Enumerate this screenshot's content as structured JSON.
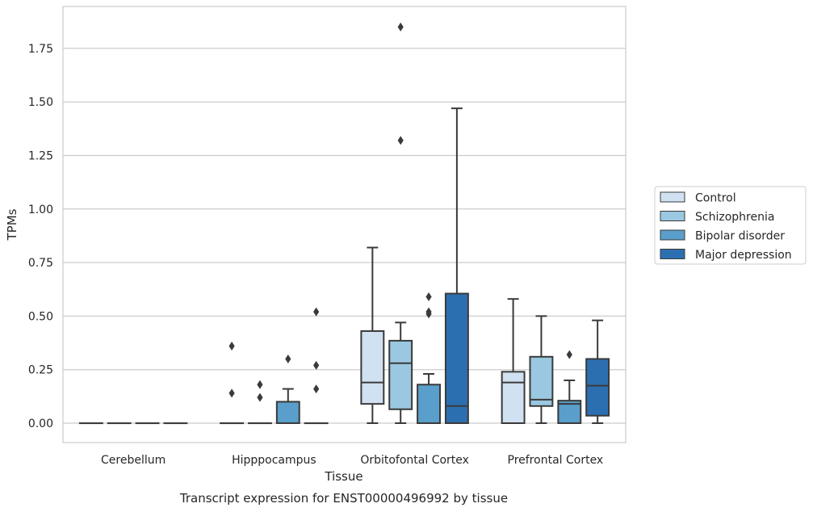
{
  "chart_data": {
    "type": "box",
    "title": "",
    "caption": "Transcript expression for ENST00000496992 by tissue",
    "xlabel": "Tissue",
    "ylabel": "TPMs",
    "ylim": [
      -0.09,
      1.95
    ],
    "yticks": [
      "0.00",
      "0.25",
      "0.50",
      "0.75",
      "1.00",
      "1.25",
      "1.50",
      "1.75"
    ],
    "grid": "horizontal",
    "legend_position": "right",
    "categories": [
      "Cerebellum",
      "Hipppocampus",
      "Orbitofontal Cortex",
      "Prefrontal Cortex"
    ],
    "series": [
      {
        "name": "Control",
        "color": "#d0e1f2",
        "boxes": [
          {
            "q1": 0,
            "median": 0,
            "q3": 0,
            "whisker_low": 0,
            "whisker_high": 0,
            "outliers": []
          },
          {
            "q1": 0,
            "median": 0,
            "q3": 0,
            "whisker_low": 0,
            "whisker_high": 0,
            "outliers": [
              0.36,
              0.14
            ]
          },
          {
            "q1": 0.09,
            "median": 0.19,
            "q3": 0.43,
            "whisker_low": 0,
            "whisker_high": 0.82,
            "outliers": []
          },
          {
            "q1": 0,
            "median": 0.19,
            "q3": 0.24,
            "whisker_low": 0,
            "whisker_high": 0.58,
            "outliers": []
          }
        ]
      },
      {
        "name": "Schizophrenia",
        "color": "#9ac8e0",
        "boxes": [
          {
            "q1": 0,
            "median": 0,
            "q3": 0,
            "whisker_low": 0,
            "whisker_high": 0,
            "outliers": []
          },
          {
            "q1": 0,
            "median": 0,
            "q3": 0,
            "whisker_low": 0,
            "whisker_high": 0,
            "outliers": [
              0.18,
              0.12
            ]
          },
          {
            "q1": 0.065,
            "median": 0.28,
            "q3": 0.385,
            "whisker_low": 0,
            "whisker_high": 0.47,
            "outliers": [
              1.85,
              1.32
            ]
          },
          {
            "q1": 0.08,
            "median": 0.11,
            "q3": 0.31,
            "whisker_low": 0,
            "whisker_high": 0.5,
            "outliers": []
          }
        ]
      },
      {
        "name": "Bipolar disorder",
        "color": "#5a9fcb",
        "boxes": [
          {
            "q1": 0,
            "median": 0,
            "q3": 0,
            "whisker_low": 0,
            "whisker_high": 0,
            "outliers": []
          },
          {
            "q1": 0,
            "median": 0,
            "q3": 0.1,
            "whisker_low": 0,
            "whisker_high": 0.16,
            "outliers": [
              0.3
            ]
          },
          {
            "q1": 0,
            "median": 0,
            "q3": 0.18,
            "whisker_low": 0,
            "whisker_high": 0.23,
            "outliers": [
              0.59,
              0.52,
              0.51
            ]
          },
          {
            "q1": 0,
            "median": 0.09,
            "q3": 0.105,
            "whisker_low": 0,
            "whisker_high": 0.2,
            "outliers": [
              0.32
            ]
          }
        ]
      },
      {
        "name": "Major depression",
        "color": "#2c6fb1",
        "boxes": [
          {
            "q1": 0,
            "median": 0,
            "q3": 0,
            "whisker_low": 0,
            "whisker_high": 0,
            "outliers": []
          },
          {
            "q1": 0,
            "median": 0,
            "q3": 0,
            "whisker_low": 0,
            "whisker_high": 0,
            "outliers": [
              0.52,
              0.27,
              0.16
            ]
          },
          {
            "q1": 0,
            "median": 0.08,
            "q3": 0.605,
            "whisker_low": 0,
            "whisker_high": 1.47,
            "outliers": []
          },
          {
            "q1": 0.035,
            "median": 0.175,
            "q3": 0.3,
            "whisker_low": 0,
            "whisker_high": 0.48,
            "outliers": []
          }
        ]
      }
    ]
  }
}
